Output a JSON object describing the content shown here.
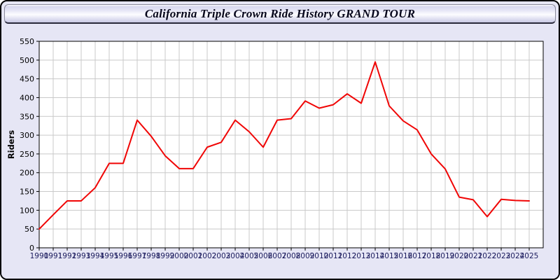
{
  "window": {
    "title": "California Triple Crown Ride History GRAND TOUR"
  },
  "colors": {
    "page_background": "#ffffff",
    "window_background": "#e6e6f5",
    "window_border": "#000000",
    "plot_background": "#ffffff",
    "gridline": "#c9c9c9",
    "axis": "#000000",
    "line": "#f00505",
    "x_tick_label": "#1c1c5e",
    "y_tick_label": "#000000",
    "title_text": "#05051a"
  },
  "chart_data": {
    "type": "line",
    "title": "California Triple Crown Ride History GRAND TOUR",
    "xlabel": "",
    "ylabel": "Riders",
    "x": [
      1990,
      1991,
      1992,
      1993,
      1994,
      1995,
      1996,
      1997,
      1998,
      1999,
      2000,
      2001,
      2002,
      2003,
      2004,
      2005,
      2006,
      2007,
      2008,
      2009,
      2010,
      2011,
      2012,
      2013,
      2014,
      2015,
      2016,
      2017,
      2018,
      2019,
      2020,
      2021,
      2022,
      2023,
      2024,
      2025
    ],
    "series": [
      {
        "name": "Riders",
        "values": [
          50,
          88,
          125,
          125,
          160,
          225,
          225,
          340,
          297,
          245,
          211,
          211,
          268,
          281,
          340,
          309,
          268,
          340,
          344,
          391,
          372,
          381,
          410,
          385,
          495,
          378,
          338,
          314,
          250,
          210,
          135,
          128,
          83,
          129,
          126,
          125
        ]
      }
    ],
    "ylim": [
      0,
      550
    ],
    "y_tick_step": 50,
    "y_ticks": [
      0,
      50,
      100,
      150,
      200,
      250,
      300,
      350,
      400,
      450,
      500,
      550
    ],
    "grid": true,
    "legend": false,
    "line_width": 2
  }
}
